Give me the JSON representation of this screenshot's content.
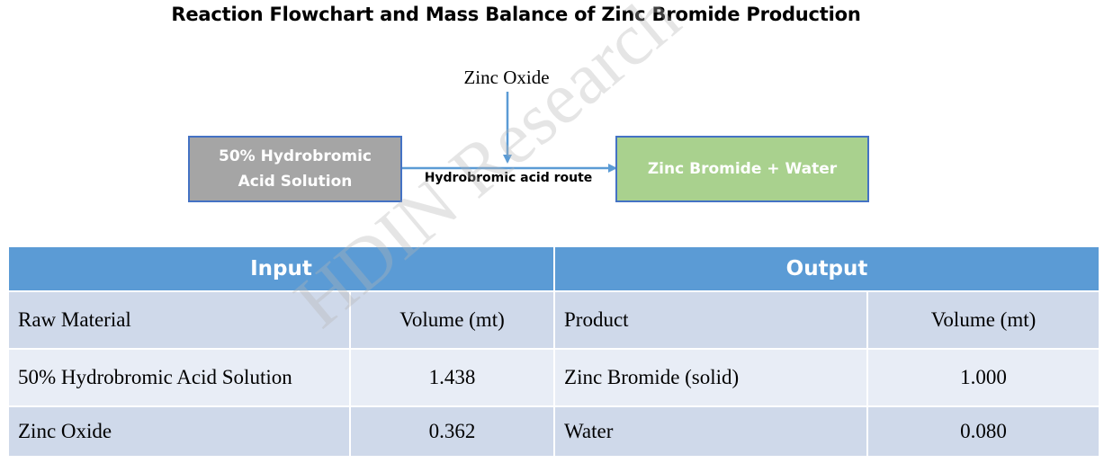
{
  "title": "Reaction Flowchart  and Mass Balance of Zinc Bromide Production",
  "flowchart": {
    "reagent": "Zinc Oxide",
    "input_box": "50% Hydrobromic Acid Solution",
    "route_label": "Hydrobromic acid route",
    "output_box": "Zinc Bromide + Water"
  },
  "watermark": "HDIN Research",
  "table": {
    "input_header": "Input",
    "output_header": "Output",
    "columns": [
      "Raw Material",
      "Volume (mt)",
      "Product",
      "Volume (mt)"
    ],
    "rows": [
      [
        "50% Hydrobromic Acid Solution",
        "1.438",
        "Zinc Bromide (solid)",
        "1.000"
      ],
      [
        "Zinc Oxide",
        "0.362",
        "Water",
        "0.080"
      ]
    ]
  },
  "colors": {
    "header_blue": "#5b9bd5",
    "input_box_gray": "#a5a5a5",
    "output_box_green": "#a9d18e",
    "arrow_blue": "#5b9bd5",
    "row_dark": "#cfd9ea",
    "row_light": "#e8edf6"
  }
}
